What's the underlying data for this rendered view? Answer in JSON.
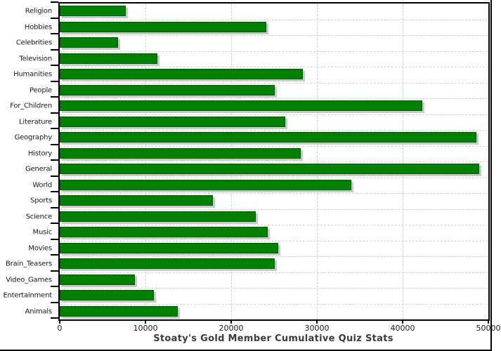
{
  "chart_data": {
    "type": "bar",
    "orientation": "horizontal",
    "title": "Stoaty's Gold Member Cumulative Quiz Stats",
    "xlabel": "",
    "ylabel": "",
    "xlim": [
      0,
      50000
    ],
    "x_ticks": [
      0,
      10000,
      20000,
      30000,
      40000,
      50000
    ],
    "x_tick_labels": [
      "0",
      "10000",
      "20000",
      "30000",
      "40000",
      "50000"
    ],
    "grid": "dashed",
    "legend": "none",
    "bar_color": "#008000",
    "bar_shadow_color": "#c9c9c9",
    "gridline_color": "#d2d2d2",
    "axis_color": "#000000",
    "title_color": "#3b3b3b",
    "categories": [
      "Religion",
      "Hobbies",
      "Celebrities",
      "Television",
      "Humanities",
      "People",
      "For_Children",
      "Literature",
      "Geography",
      "History",
      "General",
      "World",
      "Sports",
      "Science",
      "Music",
      "Movies",
      "Brain_Teasers",
      "Video_Games",
      "Entertainment",
      "Animals"
    ],
    "values": [
      7700,
      24100,
      6800,
      11400,
      28400,
      25100,
      42300,
      26300,
      48600,
      28100,
      48900,
      34000,
      17900,
      22900,
      24300,
      25500,
      25100,
      8800,
      11000,
      13800
    ]
  }
}
